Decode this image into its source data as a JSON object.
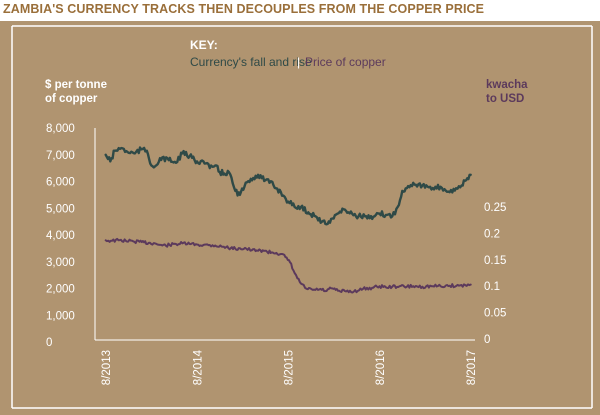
{
  "title": "ZAMBIA'S CURRENCY TRACKS THEN DECOUPLES FROM THE COPPER PRICE",
  "key": {
    "heading": "KEY:",
    "currency_label": "Currency's fall and rise",
    "separator": "|",
    "copper_label": "Price of copper"
  },
  "colors": {
    "background": "#b09470",
    "currency": "#2f4a47",
    "copper": "#5c3a5c",
    "title": "#9a6f3a",
    "text": "#ffffff"
  },
  "chart_data": {
    "type": "line",
    "title": "ZAMBIA'S CURRENCY TRACKS THEN DECOUPLES FROM THE COPPER PRICE",
    "y_left_label": [
      "$ per tonne",
      "of copper"
    ],
    "y_right_label": [
      "kwacha",
      "to USD"
    ],
    "y_left_ticks": [
      "8,000",
      "7,000",
      "6,000",
      "5,000",
      "4,000",
      "3,000",
      "2,000",
      "1,000",
      "0"
    ],
    "y_right_ticks": [
      "0.25",
      "0.2",
      "0.15",
      "0.1",
      "0.05",
      "0"
    ],
    "x_ticks": [
      "8/2013",
      "8/2014",
      "8/2015",
      "8/2016",
      "8/2017"
    ],
    "xlim": [
      2013.583,
      2017.583
    ],
    "ylim_left": [
      0,
      8000
    ],
    "ylim_right": [
      0,
      0.25
    ],
    "grid": false,
    "legend_position": "top-center",
    "series": [
      {
        "name": "Currency's fall and rise",
        "axis": "right",
        "x": [
          2013.58,
          2013.65,
          2013.72,
          2013.8,
          2013.88,
          2013.95,
          2014.0,
          2014.05,
          2014.12,
          2014.2,
          2014.28,
          2014.35,
          2014.42,
          2014.5,
          2014.58,
          2014.65,
          2014.72,
          2014.78,
          2014.85,
          2014.9,
          2014.95,
          2015.0,
          2015.05,
          2015.12,
          2015.18,
          2015.25,
          2015.3,
          2015.35,
          2015.4,
          2015.45,
          2015.5,
          2015.55,
          2015.6,
          2015.65,
          2015.68,
          2015.72,
          2015.78,
          2015.85,
          2015.92,
          2016.0,
          2016.05,
          2016.1,
          2016.15,
          2016.2,
          2016.3,
          2016.4,
          2016.5,
          2016.58,
          2016.65,
          2016.72,
          2016.8,
          2016.88,
          2016.95,
          2017.05,
          2017.15,
          2017.25,
          2017.35,
          2017.45,
          2017.52,
          2017.58
        ],
        "values": [
          0.187,
          0.186,
          0.187,
          0.186,
          0.185,
          0.184,
          0.183,
          0.182,
          0.181,
          0.177,
          0.178,
          0.18,
          0.181,
          0.18,
          0.179,
          0.178,
          0.178,
          0.177,
          0.175,
          0.174,
          0.172,
          0.171,
          0.172,
          0.171,
          0.168,
          0.167,
          0.168,
          0.165,
          0.164,
          0.163,
          0.161,
          0.155,
          0.145,
          0.125,
          0.115,
          0.105,
          0.095,
          0.093,
          0.094,
          0.091,
          0.096,
          0.093,
          0.09,
          0.091,
          0.09,
          0.095,
          0.097,
          0.1,
          0.098,
          0.099,
          0.1,
          0.099,
          0.1,
          0.099,
          0.1,
          0.1,
          0.101,
          0.101,
          0.102,
          0.103
        ]
      },
      {
        "name": "Price of copper",
        "axis": "left",
        "x": [
          2013.58,
          2013.63,
          2013.68,
          2013.75,
          2013.82,
          2013.9,
          2013.97,
          2014.03,
          2014.08,
          2014.15,
          2014.2,
          2014.27,
          2014.35,
          2014.42,
          2014.5,
          2014.58,
          2014.65,
          2014.72,
          2014.78,
          2014.83,
          2014.88,
          2014.93,
          2015.0,
          2015.05,
          2015.1,
          2015.17,
          2015.25,
          2015.33,
          2015.42,
          2015.5,
          2015.58,
          2015.65,
          2015.72,
          2015.8,
          2015.88,
          2015.95,
          2016.0,
          2016.05,
          2016.12,
          2016.2,
          2016.28,
          2016.35,
          2016.42,
          2016.5,
          2016.58,
          2016.65,
          2016.72,
          2016.78,
          2016.83,
          2016.88,
          2016.95,
          2017.05,
          2017.15,
          2017.25,
          2017.35,
          2017.42,
          2017.48,
          2017.53,
          2017.58
        ],
        "values": [
          7000,
          6750,
          7150,
          7250,
          7100,
          7050,
          7200,
          7150,
          6600,
          6650,
          6900,
          6800,
          6700,
          7050,
          6950,
          6750,
          6750,
          6500,
          6600,
          6350,
          6300,
          6350,
          5650,
          5500,
          5800,
          6100,
          6250,
          6050,
          5850,
          5600,
          5250,
          5050,
          5050,
          4850,
          4700,
          4500,
          4400,
          4600,
          4800,
          4950,
          4800,
          4700,
          4700,
          4600,
          4800,
          4750,
          4700,
          5050,
          5650,
          5750,
          5950,
          5850,
          5700,
          5800,
          5600,
          5750,
          5850,
          6050,
          6250
        ]
      }
    ]
  }
}
